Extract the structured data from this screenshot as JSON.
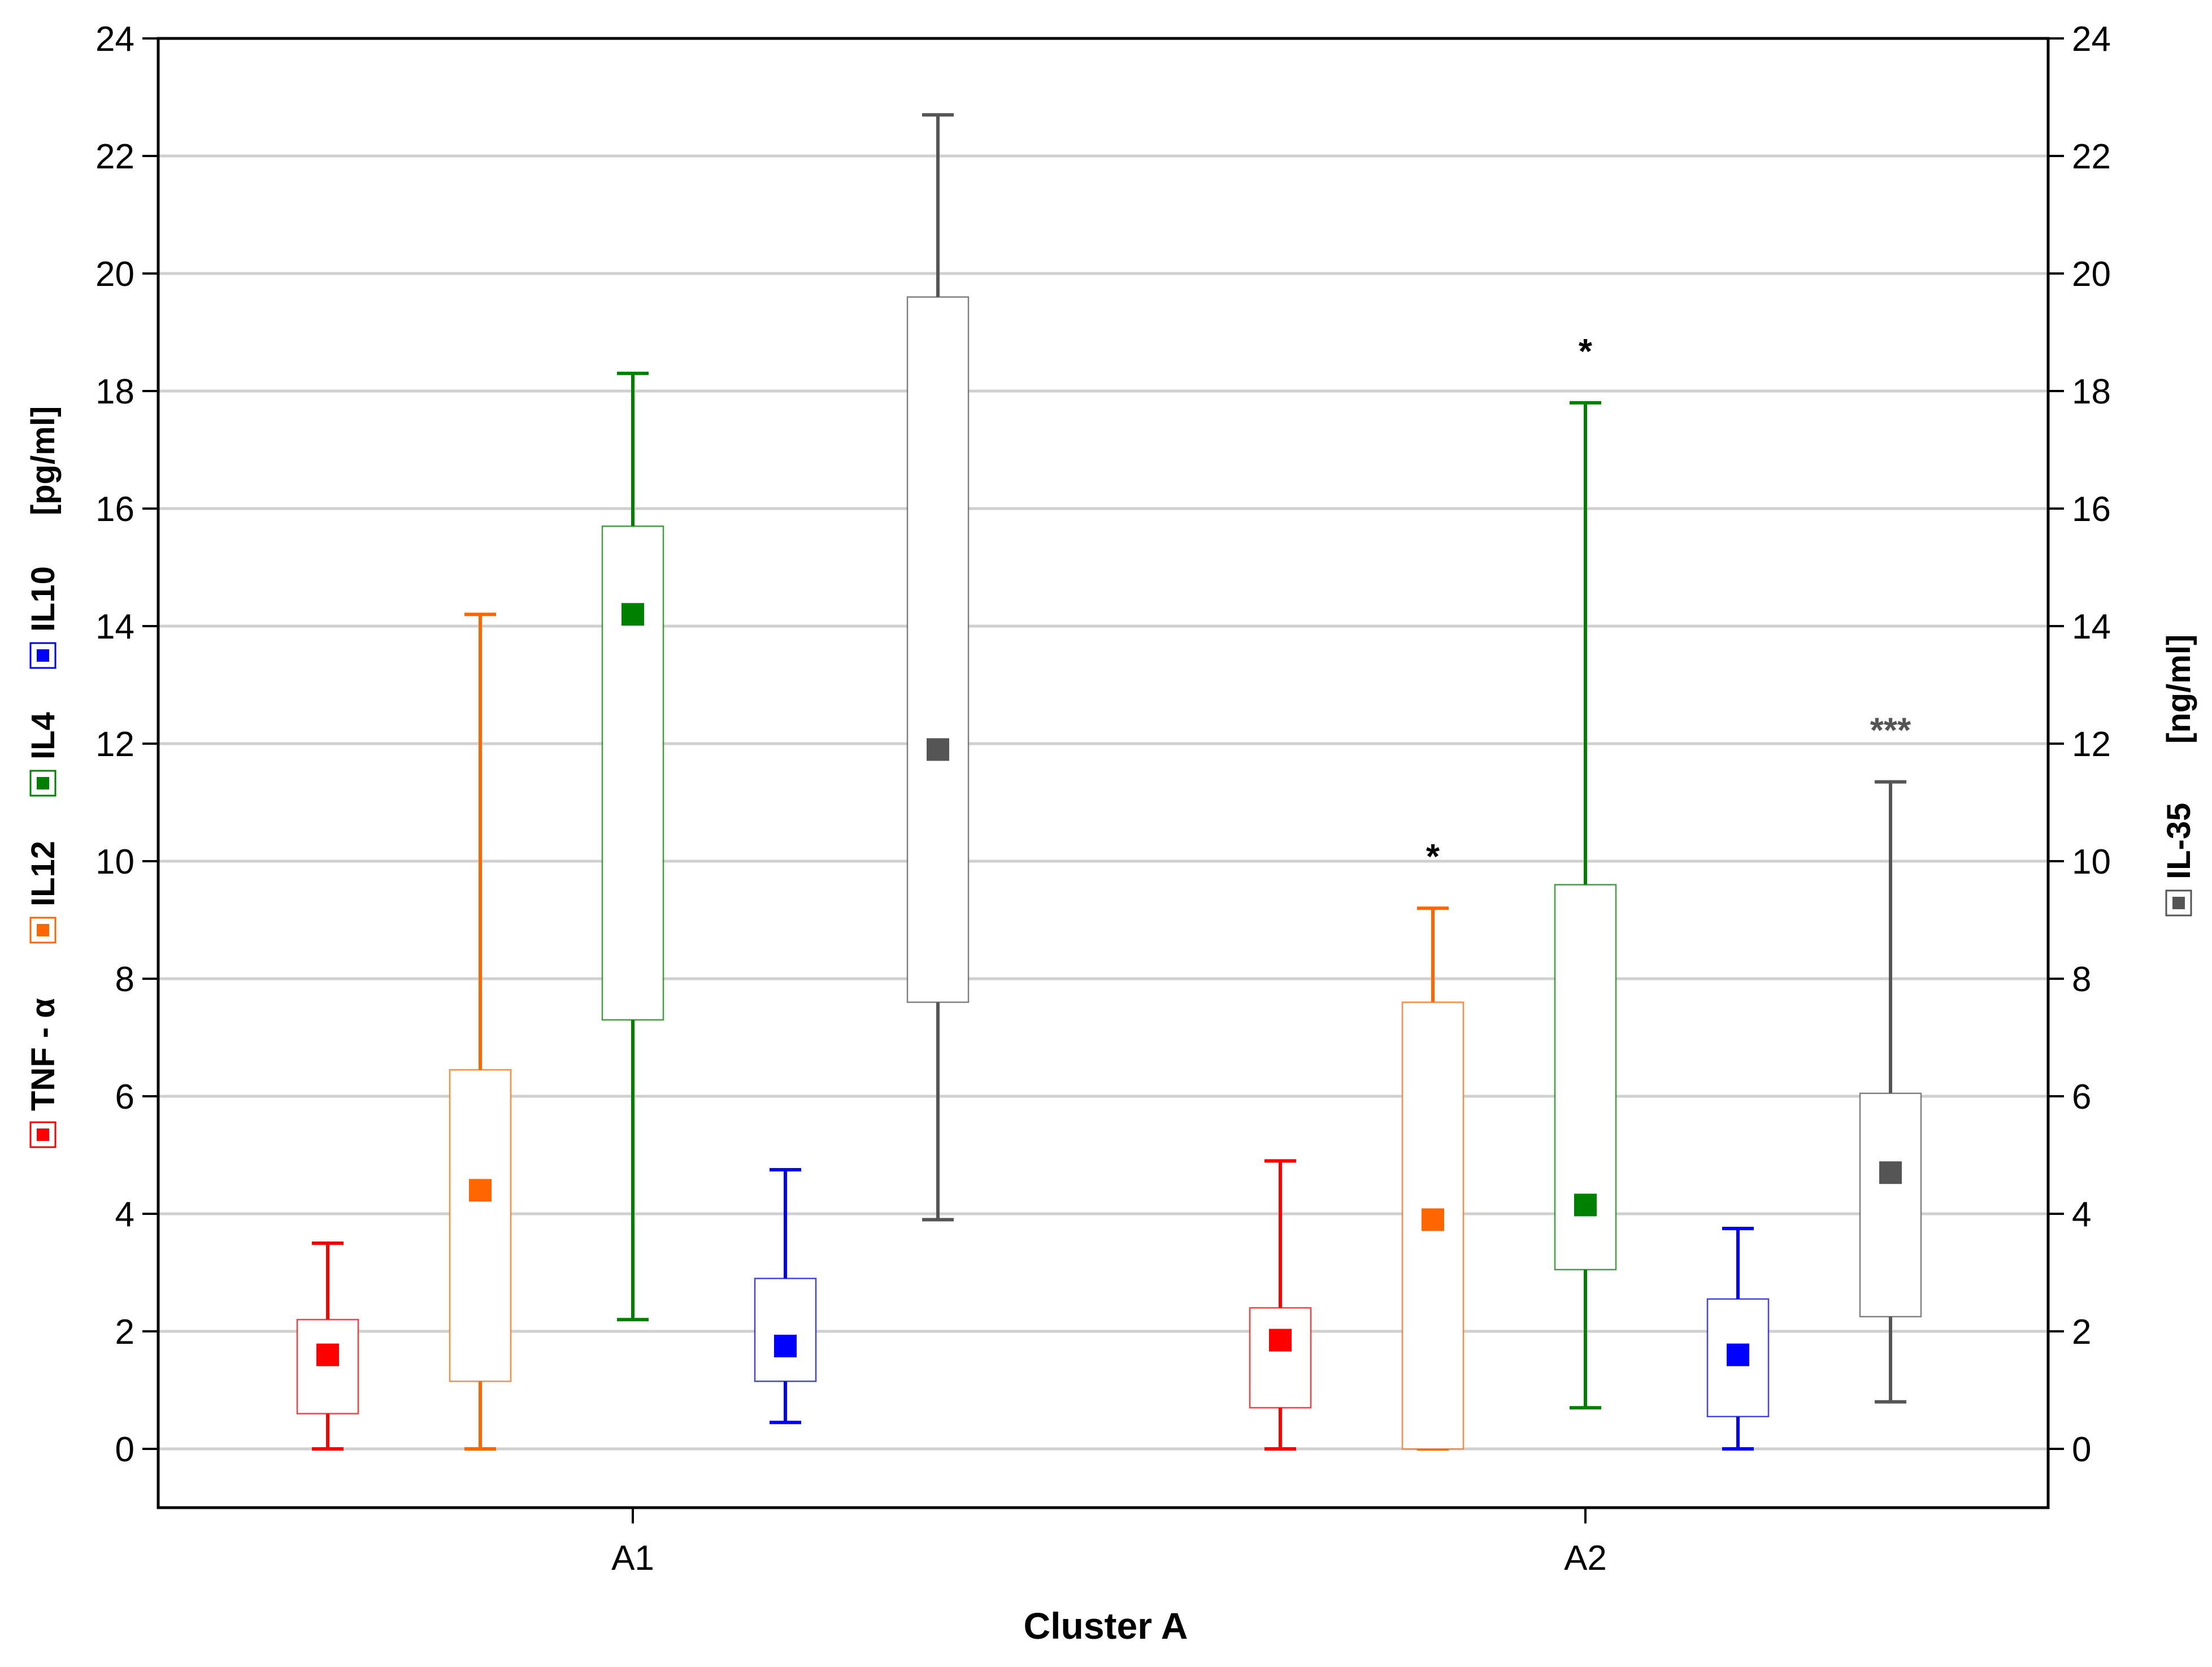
{
  "chart_data": {
    "type": "box",
    "xlabel": "Cluster A",
    "categories": [
      "A1",
      "A2"
    ],
    "ylim": [
      -1,
      24
    ],
    "y_ticks": [
      "0",
      "2",
      "4",
      "6",
      "8",
      "10",
      "12",
      "14",
      "16",
      "18",
      "20",
      "22",
      "24"
    ],
    "y_tick_values": [
      0,
      2,
      4,
      6,
      8,
      10,
      12,
      14,
      16,
      18,
      20,
      22,
      24
    ],
    "grid": true,
    "left_axis": {
      "unit": "[pg/ml]",
      "legend": [
        {
          "name": "TNF - α",
          "color": "#ff0000"
        },
        {
          "name": "IL12",
          "color": "#ff6600"
        },
        {
          "name": "IL4",
          "color": "#008000"
        },
        {
          "name": "IL10",
          "color": "#0000ff"
        }
      ]
    },
    "right_axis": {
      "unit": "[ng/ml]",
      "legend": [
        {
          "name": "IL-35",
          "color": "#555555"
        }
      ]
    },
    "series": [
      {
        "name": "TNF - α",
        "color": "#ff0000",
        "values": [
          {
            "category": "A1",
            "median": 1.6,
            "q1": 0.6,
            "q3": 2.2,
            "min": 0.0,
            "max": 3.5,
            "significance": ""
          },
          {
            "category": "A2",
            "median": 1.85,
            "q1": 0.7,
            "q3": 2.4,
            "min": 0.0,
            "max": 4.9,
            "significance": ""
          }
        ]
      },
      {
        "name": "IL12",
        "color": "#ff6600",
        "values": [
          {
            "category": "A1",
            "median": 4.4,
            "q1": 1.15,
            "q3": 6.45,
            "min": 0.0,
            "max": 14.2,
            "significance": ""
          },
          {
            "category": "A2",
            "median": 3.9,
            "q1": 0.0,
            "q3": 7.6,
            "min": 0.0,
            "max": 9.2,
            "significance": "*"
          }
        ]
      },
      {
        "name": "IL4",
        "color": "#008000",
        "values": [
          {
            "category": "A1",
            "median": 14.2,
            "q1": 7.3,
            "q3": 15.7,
            "min": 2.2,
            "max": 18.3,
            "significance": ""
          },
          {
            "category": "A2",
            "median": 4.15,
            "q1": 3.05,
            "q3": 9.6,
            "min": 0.7,
            "max": 17.8,
            "significance": "*"
          }
        ]
      },
      {
        "name": "IL10",
        "color": "#0000ff",
        "values": [
          {
            "category": "A1",
            "median": 1.75,
            "q1": 1.15,
            "q3": 2.9,
            "min": 0.45,
            "max": 4.75,
            "significance": ""
          },
          {
            "category": "A2",
            "median": 1.6,
            "q1": 0.55,
            "q3": 2.55,
            "min": 0.0,
            "max": 3.75,
            "significance": ""
          }
        ]
      },
      {
        "name": "IL-35",
        "color": "#555555",
        "values": [
          {
            "category": "A1",
            "median": 11.9,
            "q1": 7.6,
            "q3": 19.6,
            "min": 3.9,
            "max": 22.7,
            "significance": ""
          },
          {
            "category": "A2",
            "median": 4.7,
            "q1": 2.25,
            "q3": 6.05,
            "min": 0.8,
            "max": 11.35,
            "significance": "***"
          }
        ]
      }
    ]
  }
}
